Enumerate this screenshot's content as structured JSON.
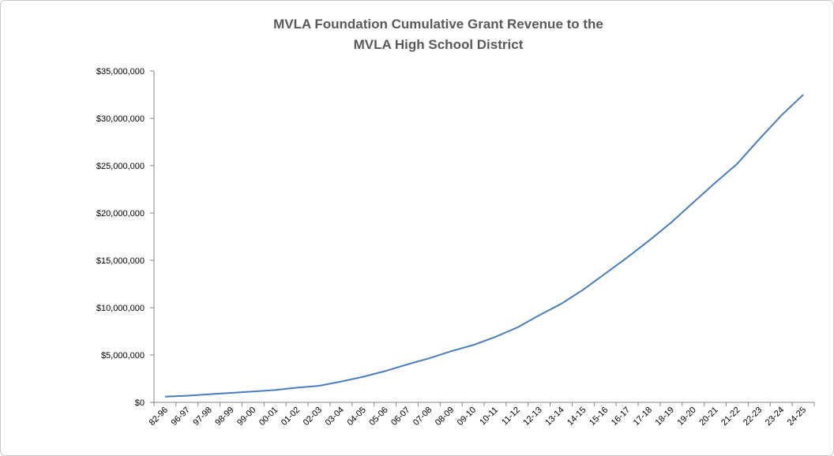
{
  "chart_data": {
    "type": "line",
    "title": [
      "MVLA Foundation  Cumulative  Grant  Revenue to the",
      "MVLA High School District"
    ],
    "xlabel": "",
    "ylabel": "",
    "categories": [
      "82-96",
      "96-97",
      "97-98",
      "98-99",
      "99-00",
      "00-01",
      "01-02",
      "02-03",
      "03-04",
      "04-05",
      "05-06",
      "06-07",
      "07-08",
      "08-09",
      "09-10",
      "10-11",
      "11-12",
      "12-13",
      "13-14",
      "14-15",
      "15-16",
      "16-17",
      "17-18",
      "18-19",
      "19-20",
      "20-21",
      "21-22",
      "22-23",
      "23-24",
      "24-25"
    ],
    "series": [
      {
        "values": [
          600000,
          700000,
          850000,
          1000000,
          1150000,
          1300000,
          1550000,
          1750000,
          2200000,
          2700000,
          3300000,
          4000000,
          4650000,
          5400000,
          6050000,
          6900000,
          7900000,
          9200000,
          10400000,
          11900000,
          13600000,
          15300000,
          17100000,
          19000000,
          21100000,
          23200000,
          25200000,
          27800000,
          30300000,
          32500000
        ],
        "color": "#4a7ebb"
      }
    ],
    "yticks": [
      "$0",
      "$5,000,000",
      "$10,000,000",
      "$15,000,000",
      "$20,000,000",
      "$25,000,000",
      "$30,000,000",
      "$35,000,000"
    ],
    "ylim": [
      0,
      35000000
    ],
    "grid": false,
    "legend": "none"
  }
}
